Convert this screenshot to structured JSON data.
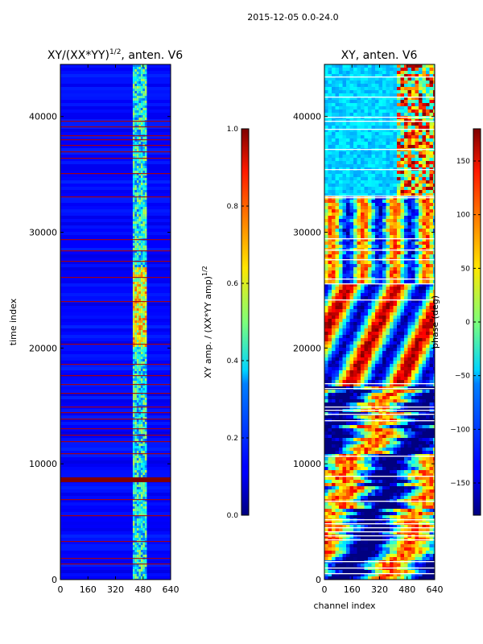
{
  "figure": {
    "suptitle": "2015-12-05 0.0-24.0"
  },
  "chart_data": [
    {
      "type": "heatmap",
      "title_main": "XY/(XX*YY)",
      "title_sup": "1/2",
      "title_rest": ", anten. V6",
      "xlabel": "",
      "ylabel": "time index",
      "xlim": [
        0,
        640
      ],
      "ylim": [
        0,
        44500
      ],
      "xticks": [
        0,
        160,
        320,
        480,
        640
      ],
      "yticks": [
        0,
        10000,
        20000,
        30000,
        40000
      ],
      "colorbar": {
        "label_main": "XY amp. / (XX*YY amp)",
        "label_sup": "1/2",
        "range": [
          0.0,
          1.0
        ],
        "ticks": [
          "0.0",
          "0.2",
          "0.4",
          "0.6",
          "0.8",
          "1.0"
        ]
      },
      "summary": "Mostly low amplitude (~0.1) with a bright band near channels 420-500 and flagged rows in dark red"
    },
    {
      "type": "heatmap",
      "title_main": "XY, anten. V6",
      "xlabel": "channel index",
      "ylabel": "",
      "xlim": [
        0,
        640
      ],
      "ylim": [
        0,
        44500
      ],
      "xticks": [
        0,
        160,
        320,
        480,
        640
      ],
      "yticks": [
        0,
        10000,
        20000,
        30000,
        40000
      ],
      "colorbar": {
        "label_main": "phase (deg)",
        "range": [
          -180,
          180
        ],
        "ticks": [
          "150",
          "100",
          "50",
          "0",
          "−50",
          "−100",
          "−150"
        ]
      },
      "summary": "Phase structure varying across channels with wrapping stripes; many flagged (white) rows"
    }
  ],
  "colors": {
    "axis": "#000000",
    "flag_row": "#7f0000",
    "jet_low": "#00007f",
    "jet_high": "#7f0000"
  }
}
